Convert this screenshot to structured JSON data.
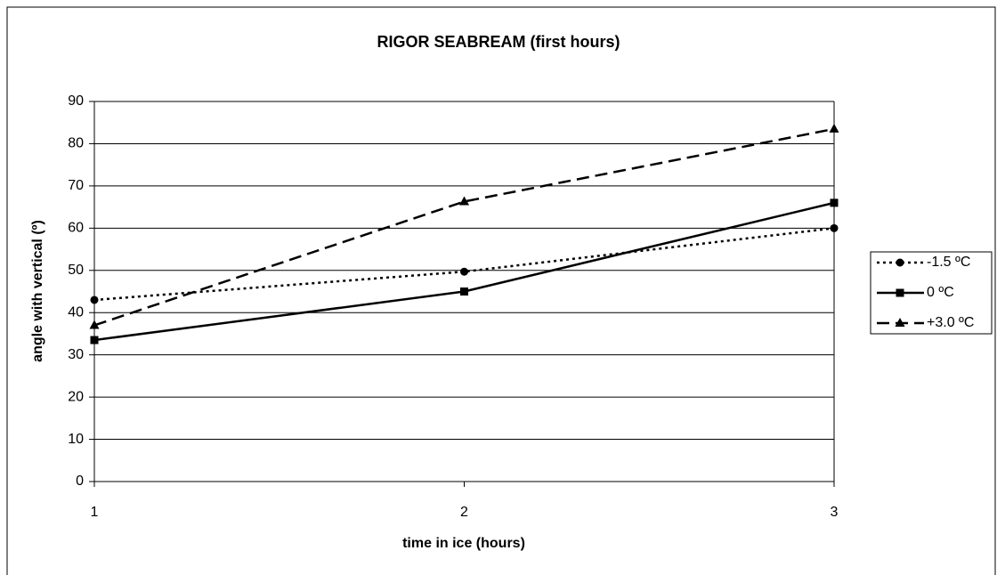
{
  "chart_data": {
    "type": "line",
    "title": "RIGOR SEABREAM (first hours)",
    "xlabel": "time in ice (hours)",
    "ylabel": "angle with vertical (º)",
    "x": [
      1,
      2,
      3
    ],
    "xlim": [
      1,
      3
    ],
    "xticks": [
      1,
      2,
      3
    ],
    "ylim": [
      0,
      90
    ],
    "yticks": [
      0,
      10,
      20,
      30,
      40,
      50,
      60,
      70,
      80,
      90
    ],
    "grid": true,
    "legend": "right",
    "series": [
      {
        "name": "-1.5 ºC",
        "color": "#000000",
        "style": "dotted",
        "marker": "circle",
        "values": [
          43,
          49.7,
          60
        ]
      },
      {
        "name": "0 ºC",
        "color": "#000000",
        "style": "solid",
        "marker": "square",
        "values": [
          33.5,
          45,
          66
        ]
      },
      {
        "name": "+3.0 ºC",
        "color": "#000000",
        "style": "dashed",
        "marker": "triangle",
        "values": [
          37,
          66.3,
          83.5
        ]
      }
    ]
  }
}
